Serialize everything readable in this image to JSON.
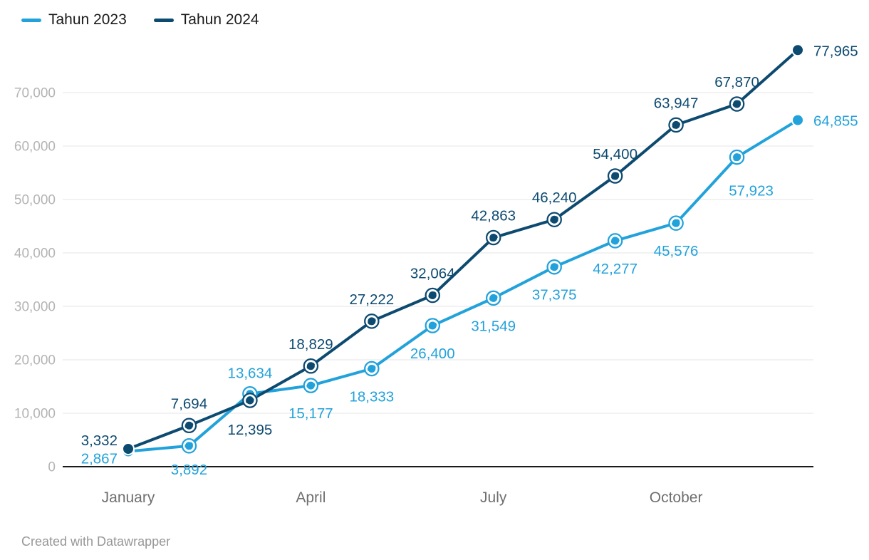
{
  "legend": {
    "items": [
      {
        "label": "Tahun 2023",
        "color": "#22a2da"
      },
      {
        "label": "Tahun 2024",
        "color": "#0d4a70"
      }
    ]
  },
  "footer": {
    "text": "Created with Datawrapper"
  },
  "colors": {
    "series_2023": "#22a2da",
    "series_2024": "#0d4a70",
    "gridline": "#e6e6e6",
    "axis_line": "#1a1a1a",
    "y_tick_label": "#b4b4b4",
    "x_tick_label": "#6f6f6f"
  },
  "chart_data": {
    "type": "line",
    "x": [
      "January",
      "February",
      "March",
      "April",
      "May",
      "June",
      "July",
      "August",
      "September",
      "October",
      "November",
      "December"
    ],
    "x_axis_labels_shown": [
      "January",
      "April",
      "July",
      "October"
    ],
    "series": [
      {
        "name": "Tahun 2023",
        "color": "#22a2da",
        "values": [
          2867,
          3892,
          13634,
          15177,
          18333,
          26400,
          31549,
          37375,
          42277,
          45576,
          57923,
          64855
        ],
        "labels": [
          "2,867",
          "3,892",
          "13,634",
          "15,177",
          "18,333",
          "26,400",
          "31,549",
          "37,375",
          "42,277",
          "45,576",
          "57,923",
          "64,855"
        ]
      },
      {
        "name": "Tahun 2024",
        "color": "#0d4a70",
        "values": [
          3332,
          7694,
          12395,
          18829,
          27222,
          32064,
          42863,
          46240,
          54400,
          63947,
          67870,
          77965
        ],
        "labels": [
          "3,332",
          "7,694",
          "12,395",
          "18,829",
          "27,222",
          "32,064",
          "42,863",
          "46,240",
          "54,400",
          "63,947",
          "67,870",
          "77,965"
        ]
      }
    ],
    "y_ticks": [
      0,
      10000,
      20000,
      30000,
      40000,
      50000,
      60000,
      70000
    ],
    "y_tick_labels": [
      "0",
      "10,000",
      "20,000",
      "30,000",
      "40,000",
      "50,000",
      "60,000",
      "70,000"
    ],
    "ylim": [
      0,
      78000
    ],
    "grid": true,
    "legend_position": "top-left"
  }
}
